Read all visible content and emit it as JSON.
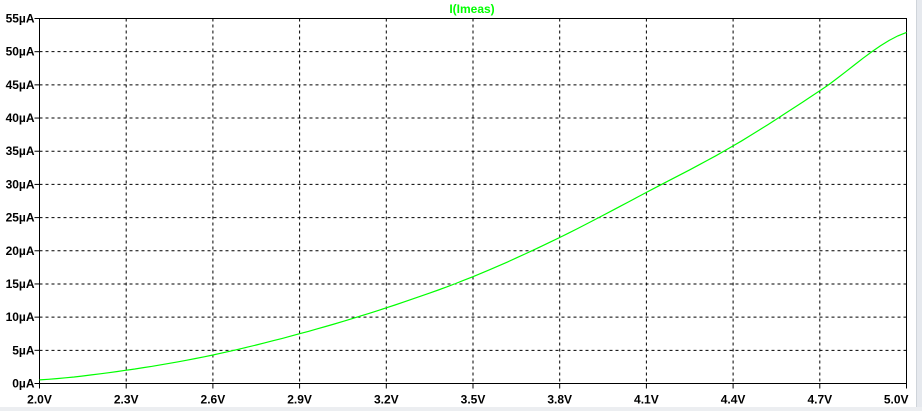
{
  "chart_data": {
    "type": "line",
    "title": "I(Imeas)",
    "xlabel": "",
    "ylabel": "",
    "xlim": [
      2.0,
      5.0
    ],
    "ylim": [
      0,
      55
    ],
    "grid": true,
    "x_ticks": [
      "2.0V",
      "2.3V",
      "2.6V",
      "2.9V",
      "3.2V",
      "3.5V",
      "3.8V",
      "4.1V",
      "4.4V",
      "4.7V",
      "5.0V"
    ],
    "y_ticks": [
      "0µA",
      "5µA",
      "10µA",
      "15µA",
      "20µA",
      "25µA",
      "30µA",
      "35µA",
      "40µA",
      "45µA",
      "50µA",
      "55µA"
    ],
    "series": [
      {
        "name": "I(Imeas)",
        "color": "#00ff00",
        "x": [
          2.0,
          2.3,
          2.6,
          2.9,
          3.2,
          3.5,
          3.8,
          4.1,
          4.4,
          4.7,
          5.0
        ],
        "y": [
          0.55,
          2.0,
          4.3,
          7.5,
          11.4,
          16.1,
          22.0,
          28.8,
          35.8,
          44.1,
          52.9
        ]
      }
    ]
  }
}
